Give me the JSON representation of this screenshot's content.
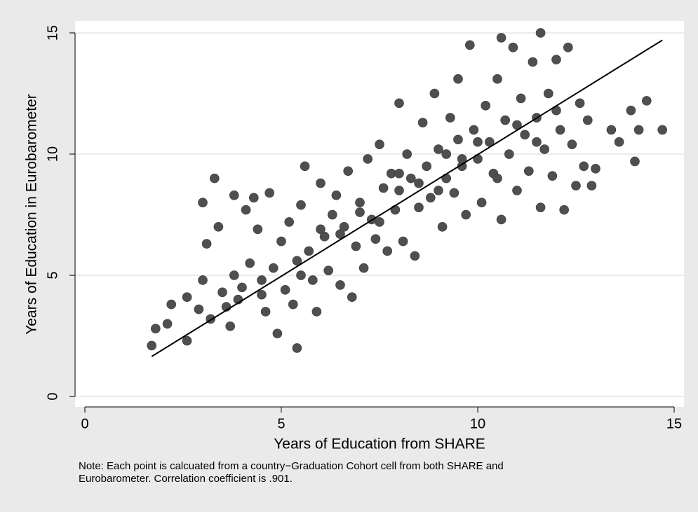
{
  "chart_data": {
    "type": "scatter",
    "x_label": "Years of Education from SHARE",
    "y_label": "Years of Education in Eurobarometer",
    "note": [
      "Note: Each point is calcuated from a country−Graduation Cohort cell from both SHARE and",
      "Eurobarometer. Correlation coefficient is .901."
    ],
    "xlim": [
      -0.25,
      15.25
    ],
    "ylim": [
      -0.43,
      15.49
    ],
    "xticks": [
      0,
      5,
      10,
      15
    ],
    "yticks": [
      0,
      5,
      10,
      15
    ],
    "grid": true,
    "color": "#4f4f4f",
    "fit_line": {
      "color": "#000000",
      "x": [
        1.7,
        14.7
      ],
      "y": [
        1.65,
        14.7
      ]
    },
    "x": [
      1.7,
      1.8,
      2.1,
      2.2,
      2.6,
      2.6,
      2.9,
      3.0,
      3.1,
      3.0,
      3.2,
      3.3,
      3.4,
      3.5,
      3.6,
      3.7,
      3.8,
      3.8,
      3.9,
      4.0,
      4.1,
      4.2,
      4.3,
      4.4,
      4.5,
      4.6,
      4.7,
      4.8,
      4.9,
      5.0,
      5.1,
      5.2,
      5.3,
      5.4,
      5.4,
      5.5,
      5.6,
      5.7,
      5.8,
      5.9,
      6.0,
      6.1,
      6.2,
      6.3,
      6.4,
      6.5,
      6.6,
      6.7,
      6.8,
      6.9,
      7.0,
      7.1,
      7.2,
      7.3,
      7.4,
      7.5,
      7.6,
      7.7,
      7.8,
      7.9,
      8.0,
      8.0,
      8.1,
      8.2,
      8.3,
      8.4,
      8.5,
      8.6,
      8.7,
      8.8,
      8.9,
      9.0,
      9.1,
      9.2,
      9.3,
      9.4,
      9.5,
      9.5,
      9.6,
      9.7,
      9.8,
      9.9,
      10.0,
      10.1,
      10.2,
      10.3,
      10.4,
      10.5,
      10.6,
      10.6,
      10.7,
      10.8,
      10.9,
      11.0,
      11.1,
      11.2,
      11.3,
      11.4,
      11.5,
      11.6,
      11.6,
      11.7,
      11.8,
      11.9,
      12.0,
      12.1,
      12.2,
      12.3,
      12.4,
      12.5,
      12.6,
      12.7,
      12.8,
      12.9,
      13.0,
      13.4,
      13.6,
      13.9,
      14.0,
      14.1,
      14.3,
      14.7,
      9.2,
      9.6,
      10.0,
      8.5,
      7.5,
      6.5,
      5.5,
      4.5,
      11.0,
      10.5,
      9.0,
      8.0,
      7.0,
      6.0,
      11.5,
      12.0
    ],
    "y": [
      2.1,
      2.8,
      3.0,
      3.8,
      4.1,
      2.3,
      3.6,
      8.0,
      6.3,
      4.8,
      3.2,
      9.0,
      7.0,
      4.3,
      3.7,
      2.9,
      8.3,
      5.0,
      4.0,
      4.5,
      7.7,
      5.5,
      8.2,
      6.9,
      4.2,
      3.5,
      8.4,
      5.3,
      2.6,
      6.4,
      4.4,
      7.2,
      3.8,
      5.6,
      2.0,
      7.9,
      9.5,
      6.0,
      4.8,
      3.5,
      8.8,
      6.6,
      5.2,
      7.5,
      8.3,
      4.6,
      7.0,
      9.3,
      4.1,
      6.2,
      8.0,
      5.3,
      9.8,
      7.3,
      6.5,
      10.4,
      8.6,
      6.0,
      9.2,
      7.7,
      12.1,
      8.5,
      6.4,
      10.0,
      9.0,
      5.8,
      7.8,
      11.3,
      9.5,
      8.2,
      12.5,
      10.2,
      7.0,
      9.0,
      11.5,
      8.4,
      13.1,
      10.6,
      9.5,
      7.5,
      14.5,
      11.0,
      9.8,
      8.0,
      12.0,
      10.5,
      9.2,
      13.1,
      14.8,
      7.3,
      11.4,
      10.0,
      14.4,
      8.5,
      12.3,
      10.8,
      9.3,
      13.8,
      11.5,
      15.0,
      7.8,
      10.2,
      12.5,
      9.1,
      13.9,
      11.0,
      7.7,
      14.4,
      10.4,
      8.7,
      12.1,
      9.5,
      11.4,
      8.7,
      9.4,
      11.0,
      10.5,
      11.8,
      9.7,
      11.0,
      12.2,
      11.0,
      10.0,
      9.8,
      10.5,
      8.8,
      7.2,
      6.7,
      5.0,
      4.8,
      11.2,
      9.0,
      8.5,
      9.2,
      7.6,
      6.9,
      10.5,
      11.8
    ]
  }
}
